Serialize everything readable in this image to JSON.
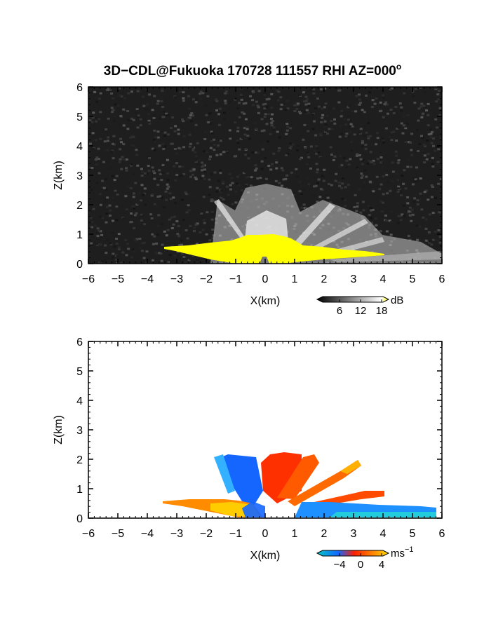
{
  "figure": {
    "title": "3D−CDL@Fukuoka 170728 111557 RHI AZ=000",
    "title_superscript": "o"
  },
  "colors": {
    "reflectivity_highlight": "#ffff00",
    "background_dark": "#1e1e1e",
    "velocity_negative": "#1466ff",
    "velocity_zero": "#ff3000",
    "velocity_positive": "#ffd200"
  },
  "chart_data": [
    {
      "type": "heatmap",
      "name": "reflectivity",
      "xlabel": "X(km)",
      "ylabel": "Z(km)",
      "xlim": [
        -6,
        6
      ],
      "ylim": [
        0,
        6
      ],
      "xticks": [
        -6,
        -5,
        -4,
        -3,
        -2,
        -1,
        0,
        1,
        2,
        3,
        4,
        5,
        6
      ],
      "yticks": [
        0,
        1,
        2,
        3,
        4,
        5,
        6
      ],
      "grid": false,
      "colorbar": {
        "unit": "dB",
        "ticks": [
          6,
          12,
          18
        ],
        "colors": [
          "#000000",
          "#ffffff",
          "#ffff00"
        ]
      }
    },
    {
      "type": "heatmap",
      "name": "doppler_velocity",
      "xlabel": "X(km)",
      "ylabel": "Z(km)",
      "xlim": [
        -6,
        6
      ],
      "ylim": [
        0,
        6
      ],
      "xticks": [
        -6,
        -5,
        -4,
        -3,
        -2,
        -1,
        0,
        1,
        2,
        3,
        4,
        5,
        6
      ],
      "yticks": [
        0,
        1,
        2,
        3,
        4,
        5,
        6
      ],
      "grid": false,
      "colorbar": {
        "unit": "ms",
        "unit_superscript": "−1",
        "ticks": [
          "−4",
          "0",
          "4"
        ],
        "colors": [
          "#00c8c8",
          "#1466ff",
          "#ff1e00",
          "#ffdc00"
        ]
      }
    }
  ]
}
